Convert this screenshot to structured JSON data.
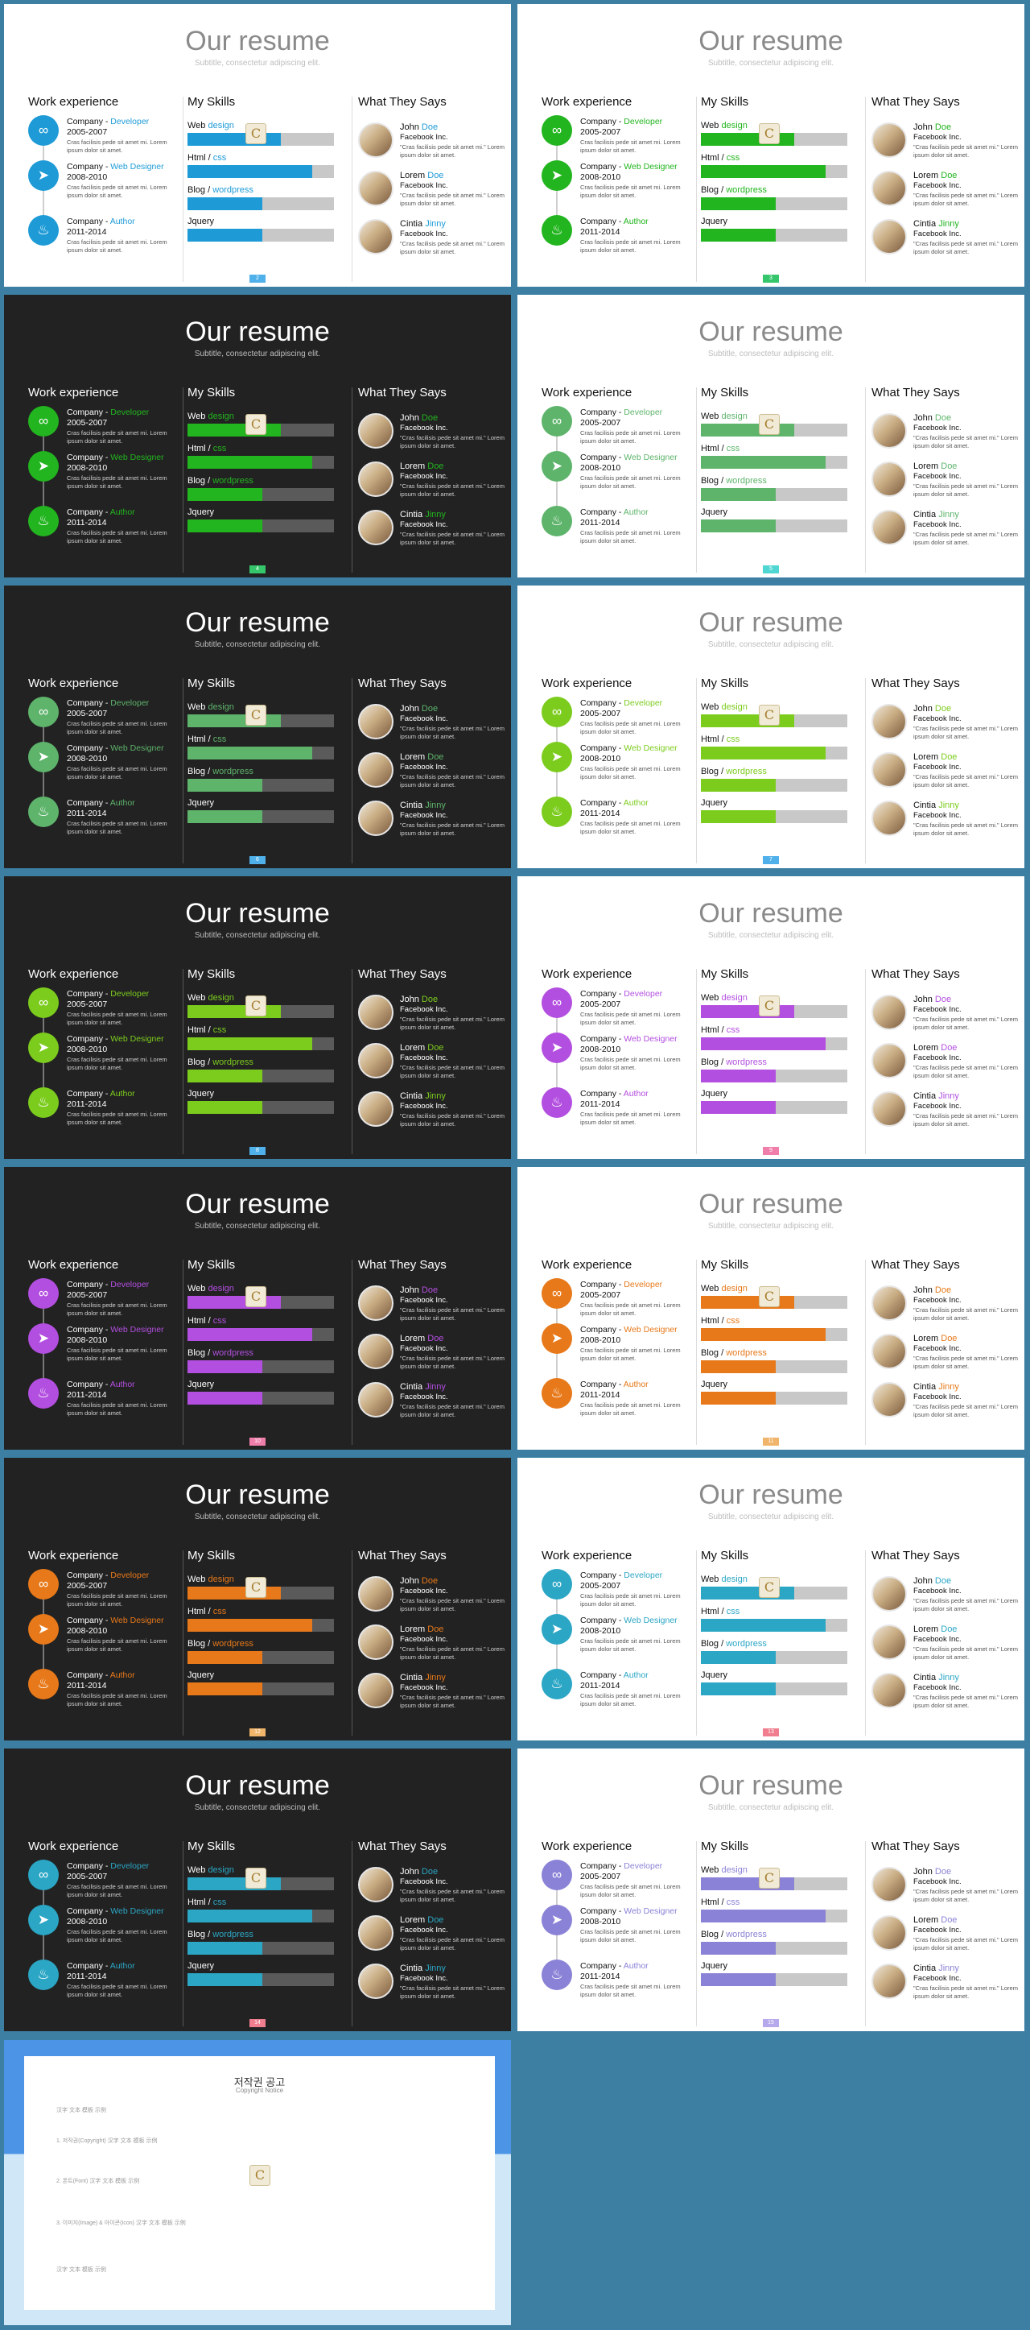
{
  "slides": [
    {
      "page": "2",
      "theme": "light",
      "accent": "#1e9bd7",
      "badge": "#4fb0ea"
    },
    {
      "page": "3",
      "theme": "light",
      "accent": "#22b51f",
      "badge": "#35c56a"
    },
    {
      "page": "4",
      "theme": "dark",
      "accent": "#22b51f",
      "badge": "#35c56a"
    },
    {
      "page": "5",
      "theme": "light",
      "accent": "#5eb46b",
      "badge": "#4fd6d3"
    },
    {
      "page": "6",
      "theme": "dark",
      "accent": "#5eb46b",
      "badge": "#4fb0ea"
    },
    {
      "page": "7",
      "theme": "light",
      "accent": "#7ccc1e",
      "badge": "#4fb0ea"
    },
    {
      "page": "8",
      "theme": "dark",
      "accent": "#7ccc1e",
      "badge": "#4fb0ea"
    },
    {
      "page": "9",
      "theme": "light",
      "accent": "#b34fe0",
      "badge": "#f07eaa"
    },
    {
      "page": "10",
      "theme": "dark",
      "accent": "#b34fe0",
      "badge": "#f07eaa"
    },
    {
      "page": "11",
      "theme": "light",
      "accent": "#e7791a",
      "badge": "#f0b46a"
    },
    {
      "page": "12",
      "theme": "dark",
      "accent": "#e7791a",
      "badge": "#f0b46a"
    },
    {
      "page": "13",
      "theme": "light",
      "accent": "#2ba6c5",
      "badge": "#f07e8e"
    },
    {
      "page": "14",
      "theme": "dark",
      "accent": "#2ba6c5",
      "badge": "#f07e8e"
    },
    {
      "page": "15",
      "theme": "light",
      "accent": "#8a82d6",
      "badge": "#b5a9ec"
    }
  ],
  "resume": {
    "title": "Our resume",
    "subtitle": "Subtitle, consectetur adipiscing elit.",
    "work_title": "Work experience",
    "skills_title": "My Skills",
    "says_title": "What They Says",
    "jobs": [
      {
        "company": "Company",
        "dash": " - ",
        "role": "Developer",
        "years": "2005-2007",
        "desc": "Cras facilisis pede sit amet mi. Lorem ipsum dolor sit amet.",
        "icon": "glasses-icon",
        "glyph": "∞"
      },
      {
        "company": "Company",
        "dash": " - ",
        "role": "Web Designer",
        "years": "2008-2010",
        "desc": "Cras facilisis pede sit amet mi. Lorem ipsum dolor sit amet.",
        "icon": "paper-plane-icon",
        "glyph": "➤"
      },
      {
        "company": "Company",
        "dash": " - ",
        "role": "Author",
        "years": "2011-2014",
        "desc": "Cras facilisis pede sit amet mi. Lorem ipsum dolor sit amet.",
        "icon": "flame-icon",
        "glyph": "♨"
      }
    ],
    "skills": [
      {
        "label_a": "Web ",
        "label_b": "design",
        "level": 0.64
      },
      {
        "label_a": "Html / ",
        "label_b": "css",
        "level": 0.85
      },
      {
        "label_a": "Blog / ",
        "label_b": "wordpress",
        "level": 0.51
      },
      {
        "label_a": "Jquery",
        "label_b": "",
        "level": 0.51
      }
    ],
    "people": [
      {
        "first": "John ",
        "last": "Doe",
        "company": "Facebook Inc.",
        "quote": "\"Cras facilisis pede sit amet mi.\" Lorem ipsum dolor sit amet."
      },
      {
        "first": "Lorem ",
        "last": "Doe",
        "company": "Facebook Inc.",
        "quote": "\"Cras facilisis pede sit amet mi.\" Lorem ipsum dolor sit amet."
      },
      {
        "first": "Cintia ",
        "last": "Jinny",
        "company": "Facebook Inc.",
        "quote": "\"Cras facilisis pede sit amet mi.\" Lorem ipsum dolor sit amet."
      }
    ]
  },
  "copyright": {
    "title": "저작권 공고",
    "subtitle": "Copyright Notice",
    "paragraphs": [
      "汉字 文本 模板 示例",
      "1. 저작권(Copyright) 汉字 文本 模板 示例",
      "2. 폰트(Font) 汉字 文本 模板 示例",
      "3. 이미지(Image) & 아이콘(Icon) 汉字 文本 模板 示例",
      "汉字 文本 模板 示例"
    ],
    "logo_letter": "C"
  }
}
